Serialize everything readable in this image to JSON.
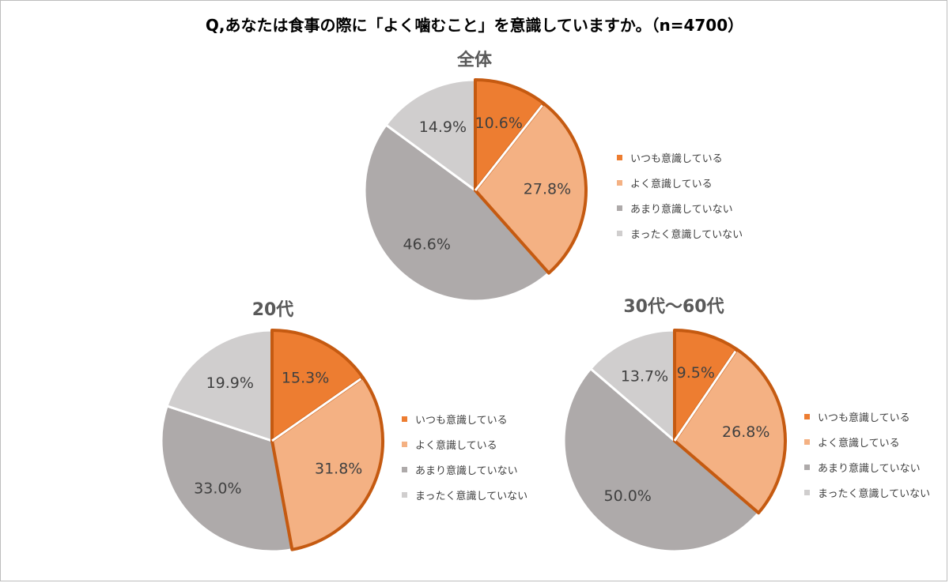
{
  "main_title": "Q,あなたは食事の際に「よく噛むこと」を意識していますか。（n=4700）",
  "legend_labels": [
    "いつも意識している",
    "よく意識している",
    "あまり意識していない",
    "まったく意識していない"
  ],
  "colors": {
    "always": "#ed7d31",
    "often": "#f4b183",
    "rarely": "#aeaaaa",
    "never": "#d0cece",
    "highlight": "#c55a11"
  },
  "chart_data": [
    {
      "type": "pie",
      "title": "全体",
      "categories": [
        "いつも意識している",
        "よく意識している",
        "あまり意識していない",
        "まったく意識していない"
      ],
      "values": [
        10.6,
        27.8,
        46.6,
        14.9
      ],
      "labels": [
        "10.6%",
        "27.8%",
        "46.6%",
        "14.9%"
      ],
      "legend": "right"
    },
    {
      "type": "pie",
      "title": "20代",
      "categories": [
        "いつも意識している",
        "よく意識している",
        "あまり意識していない",
        "まったく意識していない"
      ],
      "values": [
        15.3,
        31.8,
        33.0,
        19.9
      ],
      "labels": [
        "15.3%",
        "31.8%",
        "33.0%",
        "19.9%"
      ],
      "legend": "right"
    },
    {
      "type": "pie",
      "title": "30代〜60代",
      "categories": [
        "いつも意識している",
        "よく意識している",
        "あまり意識していない",
        "まったく意識していない"
      ],
      "values": [
        9.5,
        26.8,
        50.0,
        13.7
      ],
      "labels": [
        "9.5%",
        "26.8%",
        "50.0%",
        "13.7%"
      ],
      "legend": "right"
    }
  ]
}
